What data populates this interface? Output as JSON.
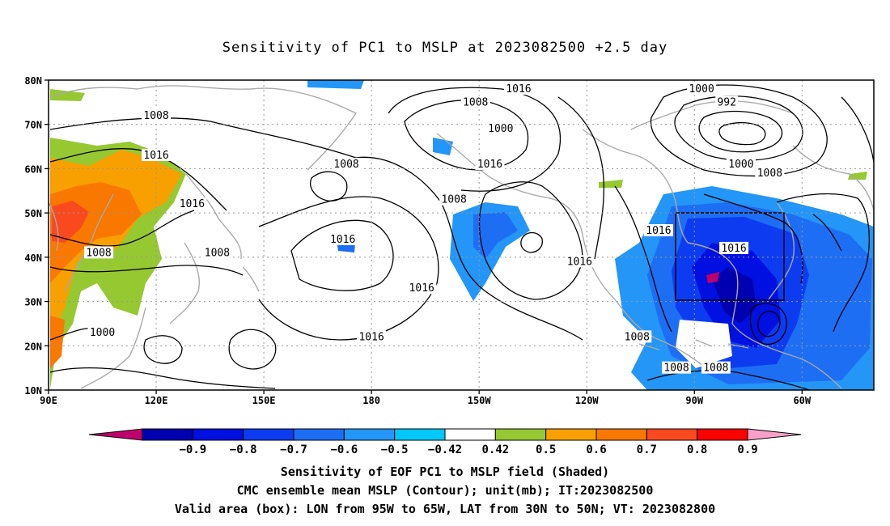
{
  "title": "Sensitivity of PC1 to MSLP at 2023082500 +2.5 day",
  "lat_ticks": [
    "80N",
    "70N",
    "60N",
    "50N",
    "40N",
    "30N",
    "20N",
    "10N"
  ],
  "lon_ticks": [
    "90E",
    "120E",
    "150E",
    "180",
    "150W",
    "120W",
    "90W",
    "60W"
  ],
  "contour_labels": [
    {
      "text": "1008",
      "lon": 120,
      "lat": 72
    },
    {
      "text": "1016",
      "lon": 120,
      "lat": 63
    },
    {
      "text": "1016",
      "lon": 130,
      "lat": 52
    },
    {
      "text": "1008",
      "lon": 104,
      "lat": 41
    },
    {
      "text": "1008",
      "lon": 137,
      "lat": 41
    },
    {
      "text": "1008",
      "lon": 173,
      "lat": 61
    },
    {
      "text": "1016",
      "lon": 172,
      "lat": 44
    },
    {
      "text": "1016",
      "lon": -166,
      "lat": 33
    },
    {
      "text": "1016",
      "lon": 180,
      "lat": 22
    },
    {
      "text": "1000",
      "lon": 105,
      "lat": 23
    },
    {
      "text": "1008",
      "lon": -151,
      "lat": 75
    },
    {
      "text": "1000",
      "lon": -144,
      "lat": 69
    },
    {
      "text": "1016",
      "lon": -147,
      "lat": 61
    },
    {
      "text": "1008",
      "lon": -157,
      "lat": 53
    },
    {
      "text": "1016",
      "lon": -139,
      "lat": 78
    },
    {
      "text": "1016",
      "lon": -122,
      "lat": 39
    },
    {
      "text": "1016",
      "lon": -100,
      "lat": 46
    },
    {
      "text": "1000",
      "lon": -88,
      "lat": 78
    },
    {
      "text": "992",
      "lon": -81,
      "lat": 75
    },
    {
      "text": "1000",
      "lon": -77,
      "lat": 61
    },
    {
      "text": "1008",
      "lon": -69,
      "lat": 59
    },
    {
      "text": "1016",
      "lon": -79,
      "lat": 42
    },
    {
      "text": "1008",
      "lon": -106,
      "lat": 22
    },
    {
      "text": "1008",
      "lon": -95,
      "lat": 15
    },
    {
      "text": "1008",
      "lon": -84,
      "lat": 15
    }
  ],
  "valid_box": {
    "lon_min": -95,
    "lon_max": -65,
    "lat_min": 30,
    "lat_max": 50
  },
  "colorbar": {
    "colors": [
      "#c0006c",
      "#0000b0",
      "#0010e0",
      "#0d3cf0",
      "#1e6ef4",
      "#2396f8",
      "#00c8f8",
      "#ffffff",
      "#96c832",
      "#f8a000",
      "#f87800",
      "#f84a1e",
      "#ff0000",
      "#f8a0c8"
    ],
    "labels": [
      "−0.9",
      "−0.8",
      "−0.7",
      "−0.6",
      "−0.5",
      "−0.42",
      "0.42",
      "0.5",
      "0.6",
      "0.7",
      "0.8",
      "0.9"
    ]
  },
  "footer": {
    "line1": "Sensitivity of EOF PC1 to MSLP field (Shaded)",
    "line2": "CMC ensemble mean MSLP (Contour); unit(mb); IT:2023082500",
    "line3": "Valid area (box): LON from 95W to 65W, LAT from 30N to 50N; VT: 2023082800"
  }
}
